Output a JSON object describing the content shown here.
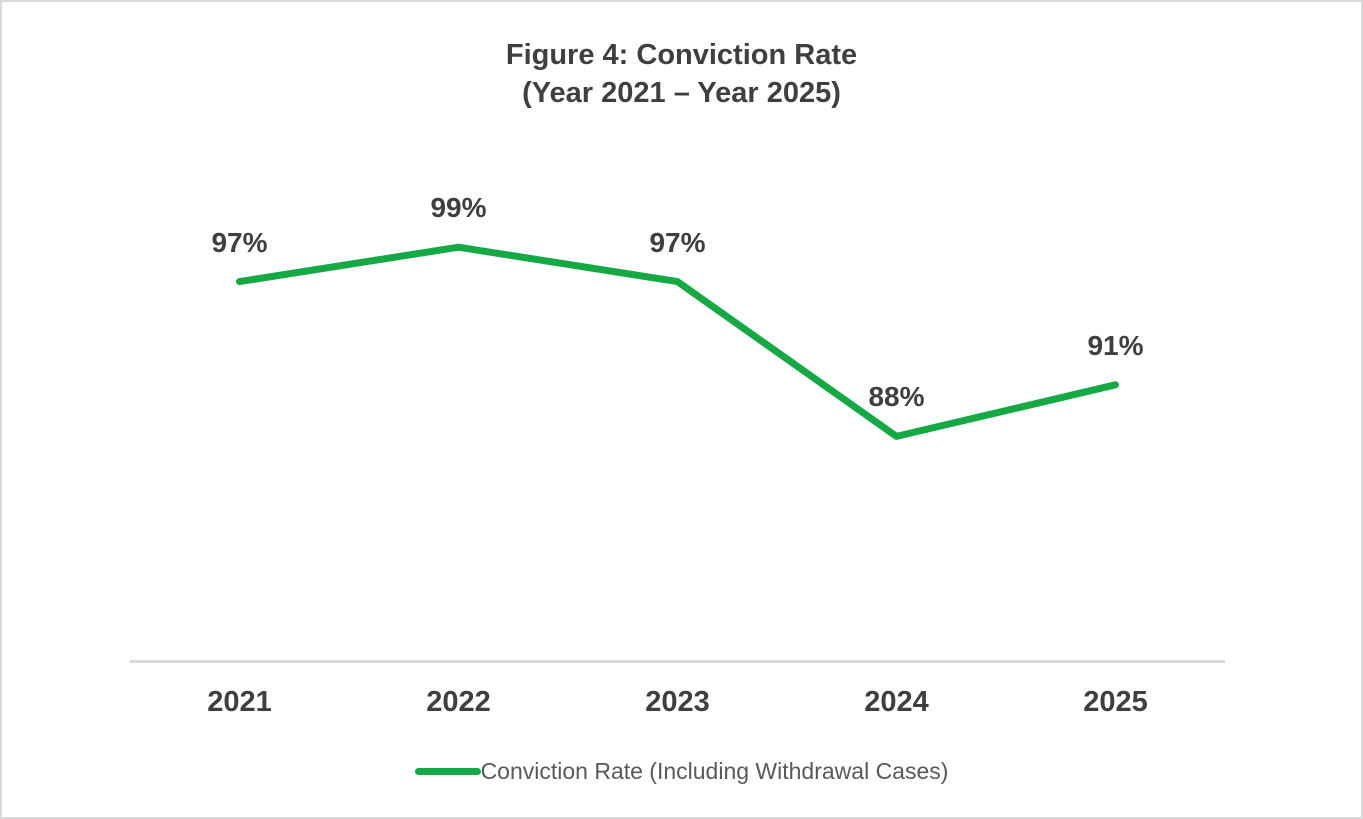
{
  "figure": {
    "title_line1": "Figure 4: Conviction Rate",
    "title_line2": "(Year 2021 – Year 2025)"
  },
  "chart_data": {
    "type": "line",
    "title": "Figure 4: Conviction Rate (Year 2021 – Year 2025)",
    "categories": [
      "2021",
      "2022",
      "2023",
      "2024",
      "2025"
    ],
    "series": [
      {
        "name": "Conviction Rate (Including Withdrawal Cases)",
        "values": [
          97,
          99,
          97,
          88,
          91
        ]
      }
    ],
    "labels": [
      "97%",
      "99%",
      "97%",
      "88%",
      "91%"
    ],
    "xlabel": "",
    "ylabel": "",
    "ylim": [
      75,
      100
    ],
    "grid": false,
    "legend_position": "bottom",
    "line_color": "#15a844",
    "axis_line_color": "#d9d9d9",
    "label_color": "#3f3f3f",
    "legend_text_color": "#595959"
  },
  "legend": {
    "label": "Conviction Rate (Including Withdrawal Cases)"
  }
}
